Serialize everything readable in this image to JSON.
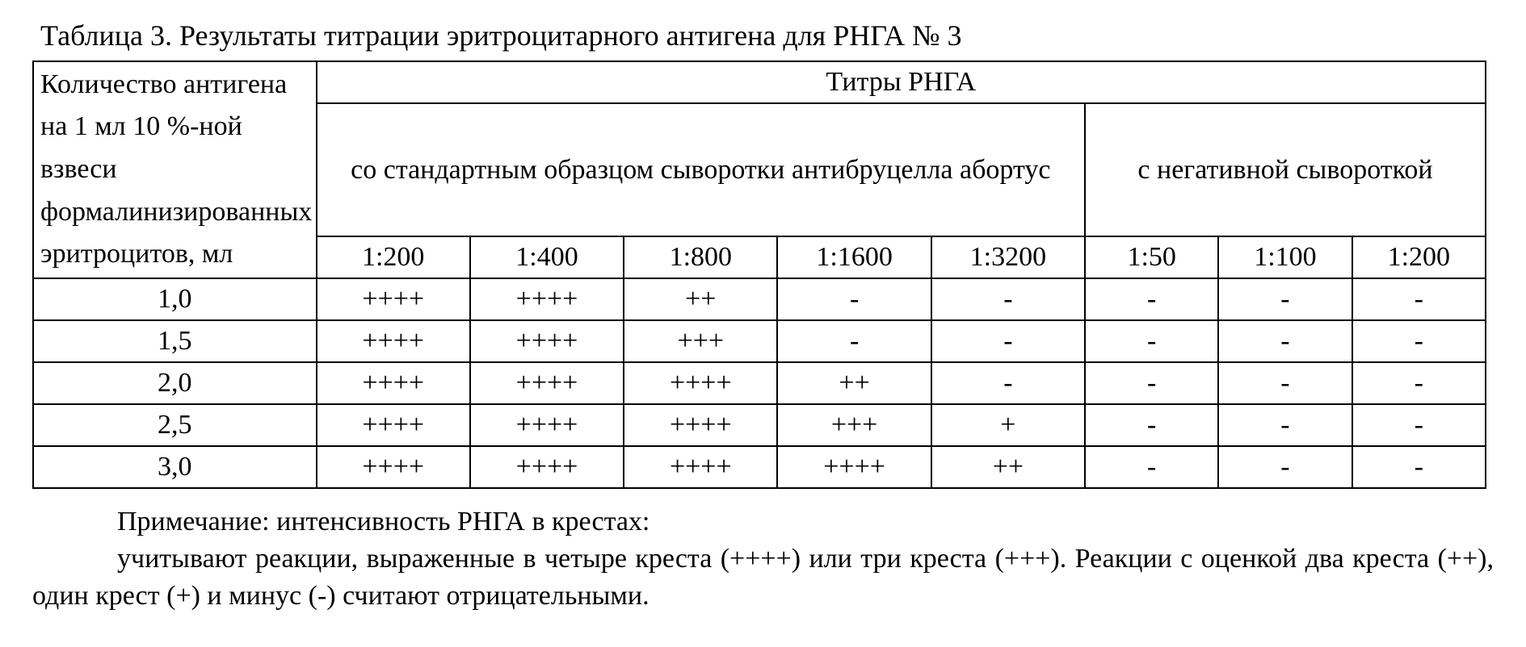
{
  "title": "Таблица 3. Результаты титрации эритроцитарного антигена для РНГА № 3",
  "table": {
    "row_header": "Количество антигена на 1 мл 10 %-ной взвеси формалинизированных эритроцитов, мл",
    "top_header": "Титры РНГА",
    "group_std": "со стандартным образцом сыворотки антибруцелла абортус",
    "group_neg": "с негативной сывороткой",
    "dil_std": [
      "1:200",
      "1:400",
      "1:800",
      "1:1600",
      "1:3200"
    ],
    "dil_neg": [
      "1:50",
      "1:100",
      "1:200"
    ],
    "rows": [
      {
        "dose": "1,0",
        "std": [
          "++++",
          "++++",
          "++",
          "-",
          "-"
        ],
        "neg": [
          "-",
          "-",
          "-"
        ]
      },
      {
        "dose": "1,5",
        "std": [
          "++++",
          "++++",
          "+++",
          "-",
          "-"
        ],
        "neg": [
          "-",
          "-",
          "-"
        ]
      },
      {
        "dose": "2,0",
        "std": [
          "++++",
          "++++",
          "++++",
          "++",
          "-"
        ],
        "neg": [
          "-",
          "-",
          "-"
        ]
      },
      {
        "dose": "2,5",
        "std": [
          "++++",
          "++++",
          "++++",
          "+++",
          "+"
        ],
        "neg": [
          "-",
          "-",
          "-"
        ]
      },
      {
        "dose": "3,0",
        "std": [
          "++++",
          "++++",
          "++++",
          "++++",
          "++"
        ],
        "neg": [
          "-",
          "-",
          "-"
        ]
      }
    ]
  },
  "notes": {
    "p1": "Примечание: интенсивность РНГА в крестах:",
    "p2": "учитывают реакции, выраженные в четыре креста (++++) или три креста (+++). Реакции с оценкой два креста (++), один крест (+) и минус (-) считают отрицательными."
  }
}
